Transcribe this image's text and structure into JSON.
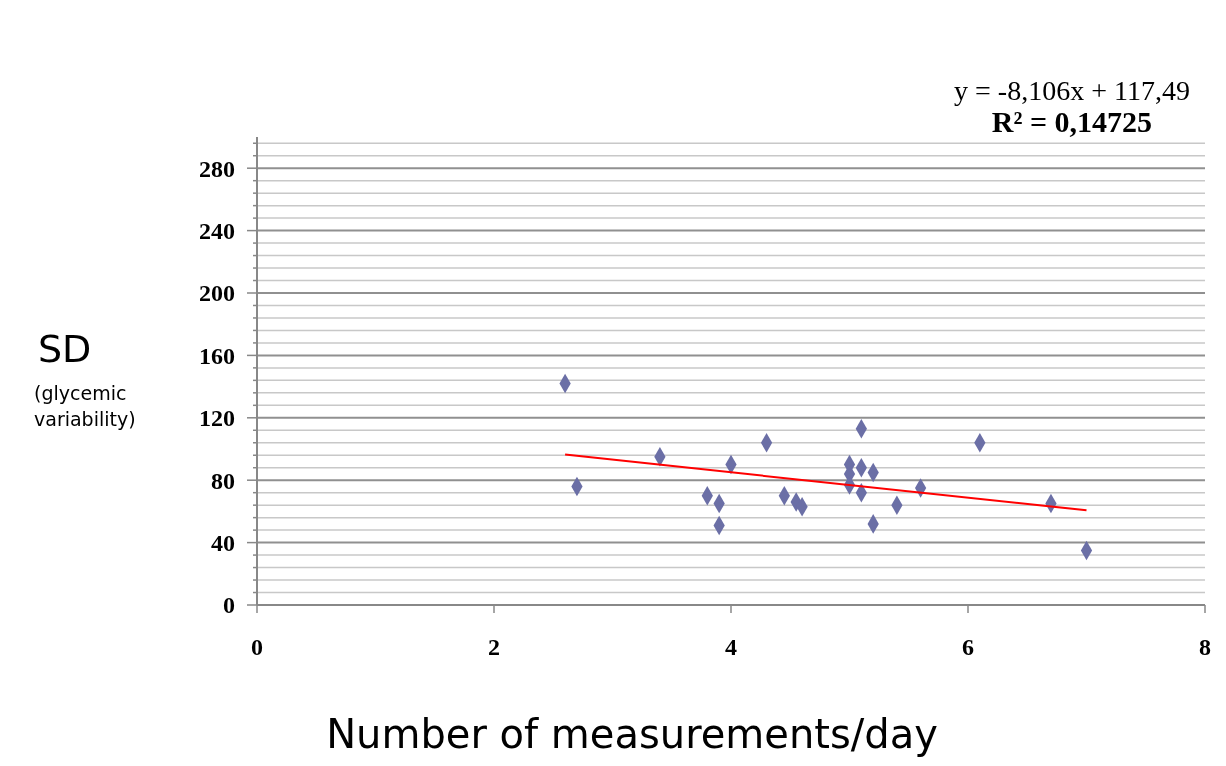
{
  "chart_data": {
    "type": "scatter",
    "xlabel": "Number of measurements/day",
    "ylabel": "SD\n(glycemic variability)",
    "annotations": [
      "y = -8,106x + 117,49\nR² = 0,14725"
    ],
    "xlim": [
      0,
      8
    ],
    "xticks": [
      0,
      2,
      4,
      6,
      8
    ],
    "ylim": [
      0,
      300
    ],
    "yticks": [
      0,
      {
        "value": 8,
        "label": null
      },
      {
        "value": 16,
        "label": null
      },
      {
        "value": 24,
        "label": null
      },
      {
        "value": 32,
        "label": null
      },
      40,
      {
        "value": 48,
        "label": null
      },
      {
        "value": 56,
        "label": null
      },
      {
        "value": 64,
        "label": null
      },
      {
        "value": 72,
        "label": null
      },
      80,
      {
        "value": 88,
        "label": null
      },
      {
        "value": 96,
        "label": null
      },
      {
        "value": 104,
        "label": null
      },
      {
        "value": 112,
        "label": null
      },
      120,
      {
        "value": 128,
        "label": null
      },
      {
        "value": 136,
        "label": null
      },
      {
        "value": 144,
        "label": null
      },
      {
        "value": 152,
        "label": null
      },
      160,
      {
        "value": 168,
        "label": null
      },
      {
        "value": 176,
        "label": null
      },
      {
        "value": 184,
        "label": null
      },
      {
        "value": 192,
        "label": null
      },
      200,
      {
        "value": 208,
        "label": null
      },
      {
        "value": 216,
        "label": null
      },
      {
        "value": 224,
        "label": null
      },
      {
        "value": 232,
        "label": null
      },
      240,
      {
        "value": 248,
        "label": null
      },
      {
        "value": 256,
        "label": null
      },
      {
        "value": 264,
        "label": null
      },
      {
        "value": 272,
        "label": null
      },
      280,
      {
        "value": 288,
        "label": null
      },
      {
        "value": 296,
        "label": null
      }
    ],
    "grid": "y",
    "marker": "diamond",
    "series": [
      {
        "color": "#6b6fa6",
        "x": [
          2.6,
          2.7,
          3.4,
          3.8,
          3.9,
          3.9,
          4.0,
          4.3,
          4.45,
          4.55,
          4.6,
          5.0,
          5.0,
          5.0,
          5.1,
          5.1,
          5.1,
          5.2,
          5.2,
          5.4,
          5.6,
          6.1,
          6.7,
          7.0
        ],
        "values": [
          142,
          76,
          95,
          70,
          65,
          51,
          90,
          104,
          70,
          66,
          63,
          90,
          84,
          77,
          113,
          88,
          72,
          85,
          52,
          64,
          75,
          104,
          65,
          35
        ]
      },
      {
        "type": "line",
        "color": "#ff0000",
        "marker": "none",
        "x": [
          2.6,
          7.0
        ],
        "values": [
          96.4,
          60.7
        ]
      }
    ]
  }
}
